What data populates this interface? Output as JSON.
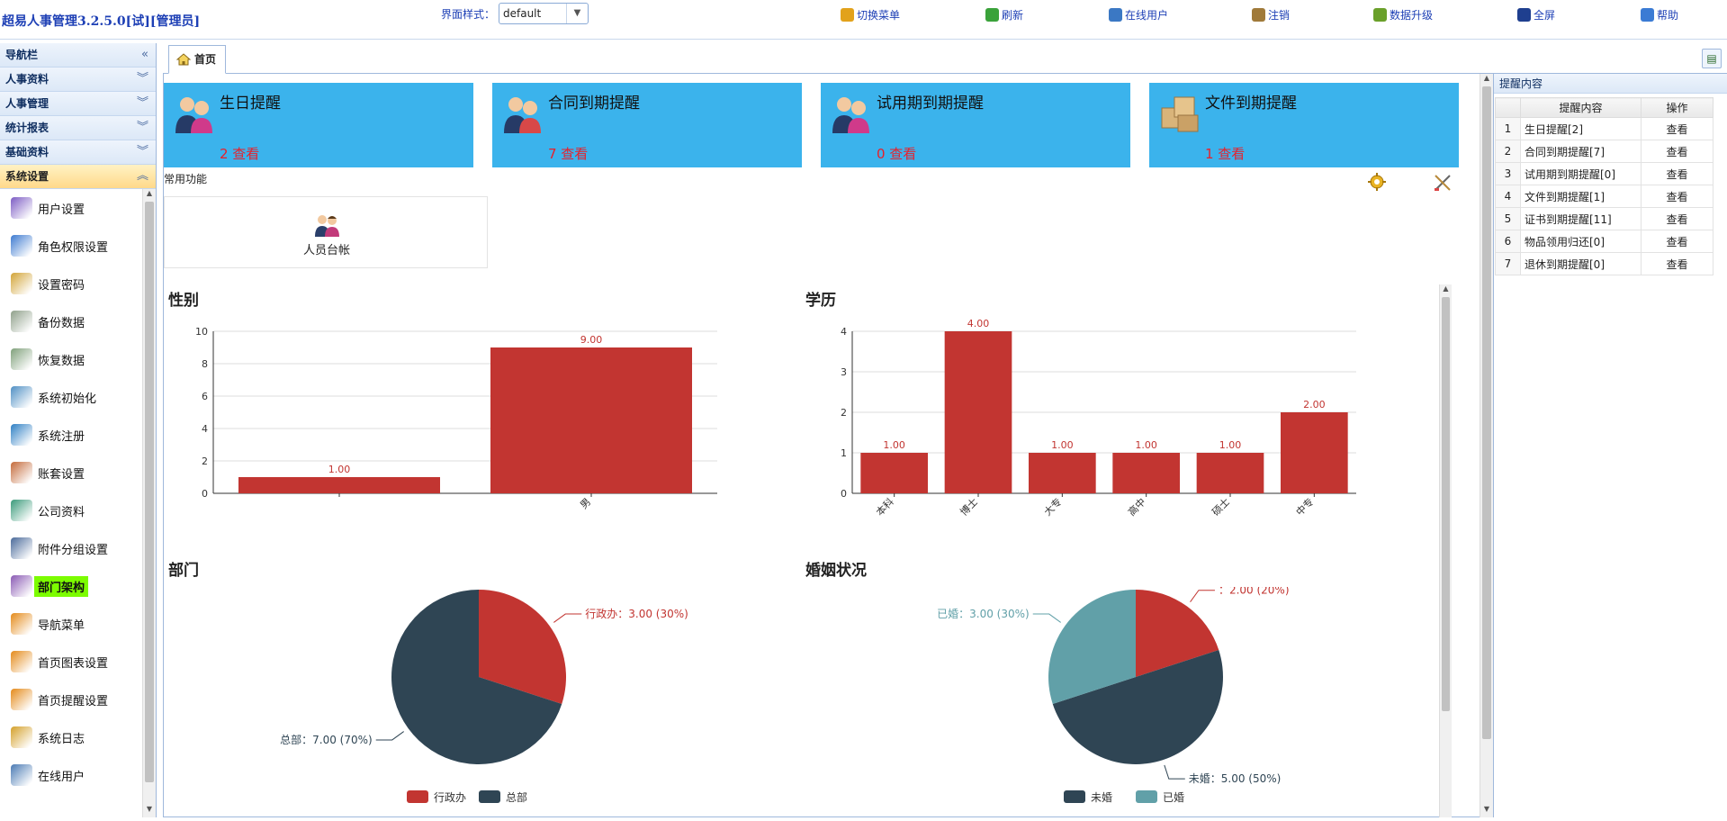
{
  "app": {
    "title": "超易人事管理3.2.5.0[试][管理员]"
  },
  "style_select": {
    "label": "界面样式：",
    "value": "default"
  },
  "toolbar": [
    {
      "label": "切换菜单",
      "icon": "switch-menu-icon",
      "color": "#e2a21b"
    },
    {
      "label": "刷新",
      "icon": "refresh-icon",
      "color": "#3aa23a"
    },
    {
      "label": "在线用户",
      "icon": "online-users-icon",
      "color": "#3b78c4"
    },
    {
      "label": "注销",
      "icon": "logout-icon",
      "color": "#a07a3a"
    },
    {
      "label": "数据升级",
      "icon": "data-upgrade-icon",
      "color": "#6aa02a"
    },
    {
      "label": "全屏",
      "icon": "fullscreen-icon",
      "color": "#1f3f8f"
    },
    {
      "label": "帮助",
      "icon": "help-icon",
      "color": "#3b7bd4"
    }
  ],
  "sidebar": {
    "sections": [
      {
        "label": "导航栏",
        "chev": "«"
      },
      {
        "label": "人事资料",
        "chev": "︾"
      },
      {
        "label": "人事管理",
        "chev": "︾"
      },
      {
        "label": "统计报表",
        "chev": "︾"
      },
      {
        "label": "基础资料",
        "chev": "︾"
      },
      {
        "label": "系统设置",
        "chev": "︽",
        "active": true
      }
    ],
    "items": [
      {
        "label": "用户设置",
        "icon": "user-settings-icon",
        "color": "#7c5cc4"
      },
      {
        "label": "角色权限设置",
        "icon": "role-permission-icon",
        "color": "#3d7ad0"
      },
      {
        "label": "设置密码",
        "icon": "key-icon",
        "color": "#d2a437"
      },
      {
        "label": "备份数据",
        "icon": "backup-database-icon",
        "color": "#8fa08a"
      },
      {
        "label": "恢复数据",
        "icon": "restore-database-icon",
        "color": "#7fa07a"
      },
      {
        "label": "系统初始化",
        "icon": "system-init-icon",
        "color": "#4f8fc4"
      },
      {
        "label": "系统注册",
        "icon": "register-icon",
        "color": "#2e7fc4"
      },
      {
        "label": "账套设置",
        "icon": "account-set-icon",
        "color": "#c46a3a"
      },
      {
        "label": "公司资料",
        "icon": "company-info-icon",
        "color": "#3a9a7a"
      },
      {
        "label": "附件分组设置",
        "icon": "attachment-group-icon",
        "color": "#4a6a9a"
      },
      {
        "label": "部门架构",
        "icon": "department-structure-icon",
        "color": "#8a5ab4",
        "selected": true
      },
      {
        "label": "导航菜单",
        "icon": "nav-menu-icon",
        "color": "#e48a1a"
      },
      {
        "label": "首页图表设置",
        "icon": "home-chart-settings-icon",
        "color": "#e48a1a"
      },
      {
        "label": "首页提醒设置",
        "icon": "home-reminder-settings-icon",
        "color": "#e48a1a"
      },
      {
        "label": "系统日志",
        "icon": "system-log-icon",
        "color": "#d4a02a"
      },
      {
        "label": "在线用户",
        "icon": "online-user-icon",
        "color": "#4a7ab4"
      }
    ]
  },
  "tabs": [
    {
      "label": "首页",
      "icon": "home-icon"
    }
  ],
  "cards": [
    {
      "title": "生日提醒",
      "count": "2 查看",
      "icon": "birthday-people-icon"
    },
    {
      "title": "合同到期提醒",
      "count": "7 查看",
      "icon": "contract-people-icon"
    },
    {
      "title": "试用期到期提醒",
      "count": "0 查看",
      "icon": "probation-people-icon"
    },
    {
      "title": "文件到期提醒",
      "count": "1 查看",
      "icon": "file-boxes-icon"
    }
  ],
  "common": {
    "label": "常用功能",
    "items": [
      {
        "label": "人员台帐",
        "icon": "personnel-ledger-icon"
      }
    ]
  },
  "charts_titles": {
    "gender": "性别",
    "education": "学历",
    "department": "部门",
    "marital": "婚姻状况"
  },
  "chart_data": [
    {
      "type": "bar",
      "title": "性别",
      "categories": [
        "",
        "男"
      ],
      "values": [
        1,
        9
      ],
      "ylim": [
        0,
        10
      ],
      "yticks": [
        0,
        2,
        4,
        6,
        8,
        10
      ],
      "labels": [
        "1.00",
        "9.00"
      ],
      "color": "#c23531"
    },
    {
      "type": "bar",
      "title": "学历",
      "categories": [
        "本科",
        "博士",
        "大专",
        "高中",
        "硕士",
        "中专"
      ],
      "values": [
        1,
        4,
        1,
        1,
        1,
        2
      ],
      "ylim": [
        0,
        4
      ],
      "yticks": [
        0,
        1,
        2,
        3,
        4
      ],
      "labels": [
        "1.00",
        "4.00",
        "1.00",
        "1.00",
        "1.00",
        "2.00"
      ],
      "color": "#c23531"
    },
    {
      "type": "pie",
      "title": "部门",
      "slices": [
        {
          "name": "行政办",
          "value": 3,
          "label": "行政办：3.00 (30%)",
          "color": "#c23531"
        },
        {
          "name": "总部",
          "value": 7,
          "label": "总部：7.00 (70%)",
          "color": "#2f4554"
        }
      ],
      "legend": [
        "行政办",
        "总部"
      ]
    },
    {
      "type": "pie",
      "title": "婚姻状况",
      "slices": [
        {
          "name": "",
          "value": 2,
          "label": "：2.00 (20%)",
          "color": "#c23531"
        },
        {
          "name": "未婚",
          "value": 5,
          "label": "未婚：5.00 (50%)",
          "color": "#2f4554"
        },
        {
          "name": "已婚",
          "value": 3,
          "label": "已婚：3.00 (30%)",
          "color": "#61a0a8"
        }
      ],
      "legend": [
        "未婚",
        "已婚"
      ]
    }
  ],
  "reminder_panel": {
    "title": "提醒内容",
    "columns": [
      "提醒内容",
      "操作"
    ],
    "rows": [
      {
        "n": "1",
        "content": "生日提醒[2]",
        "op": "查看"
      },
      {
        "n": "2",
        "content": "合同到期提醒[7]",
        "op": "查看"
      },
      {
        "n": "3",
        "content": "试用期到期提醒[0]",
        "op": "查看"
      },
      {
        "n": "4",
        "content": "文件到期提醒[1]",
        "op": "查看"
      },
      {
        "n": "5",
        "content": "证书到期提醒[11]",
        "op": "查看"
      },
      {
        "n": "6",
        "content": "物品领用归还[0]",
        "op": "查看"
      },
      {
        "n": "7",
        "content": "退休到期提醒[0]",
        "op": "查看"
      }
    ]
  }
}
